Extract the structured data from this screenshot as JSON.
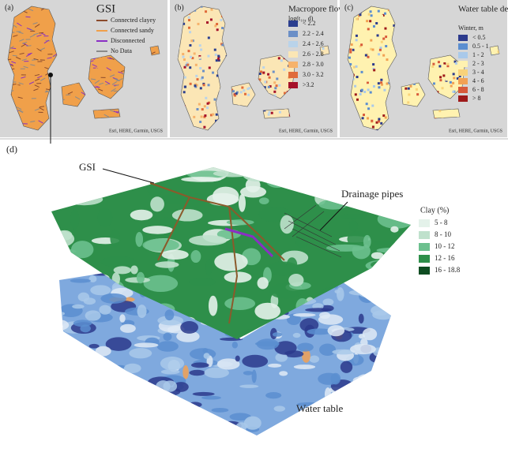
{
  "panels": [
    {
      "label": "(a)",
      "legend": {
        "title": "GSI",
        "items": [
          {
            "label": "Connected clayey",
            "color": "#8b4a2b"
          },
          {
            "label": "Connected sandy",
            "color": "#f0a04a"
          },
          {
            "label": "Disconnected",
            "color": "#8a2fc4"
          },
          {
            "label": "No Data",
            "color": "#8a8a8a"
          }
        ]
      },
      "credit": "Esri, HERE, Garmin, USGS"
    },
    {
      "label": "(b)",
      "legend": {
        "title": "Macropore flow",
        "subtitle": "log(t₁₀, d)",
        "items": [
          {
            "label": "< 2.2",
            "color": "#2b3f8f"
          },
          {
            "label": "2.2 - 2.4",
            "color": "#6b8fc7"
          },
          {
            "label": "2.4 - 2.6",
            "color": "#b9d3ea"
          },
          {
            "label": "2.6 - 2.8",
            "color": "#fbe6b5"
          },
          {
            "label": "2.8 - 3.0",
            "color": "#f6b26b"
          },
          {
            "label": "3.0 - 3.2",
            "color": "#e06b3b"
          },
          {
            "label": ">3.2",
            "color": "#a5112a"
          }
        ]
      },
      "credit": "Esri, HERE, Garmin, USGS"
    },
    {
      "label": "(c)",
      "legend": {
        "title": "Water table depth",
        "subtitle": "Winter, m",
        "items": [
          {
            "label": "< 0.5",
            "color": "#2c3a8c"
          },
          {
            "label": "0.5 - 1",
            "color": "#5b8ed0"
          },
          {
            "label": "1 - 2",
            "color": "#a9c9ea"
          },
          {
            "label": "2 - 3",
            "color": "#fff2b0"
          },
          {
            "label": "3 - 4",
            "color": "#f8d27a"
          },
          {
            "label": "4 - 6",
            "color": "#f2a153"
          },
          {
            "label": "6 - 8",
            "color": "#d85a3a"
          },
          {
            "label": "> 8",
            "color": "#9e1a1a"
          }
        ]
      },
      "credit": "Esri, HERE, Garmin, USGS"
    }
  ],
  "panel_d": {
    "label": "(d)",
    "annotations": [
      "GSI",
      "Drainage pipes",
      "Water table"
    ],
    "legend": {
      "title": "Clay (%)",
      "items": [
        {
          "label": "5 - 8",
          "color": "#e4f2ea"
        },
        {
          "label": "8 - 10",
          "color": "#bfe1cc"
        },
        {
          "label": "10 - 12",
          "color": "#6cc08e"
        },
        {
          "label": "12 - 16",
          "color": "#2e8f4a"
        },
        {
          "label": "16 - 18.8",
          "color": "#0f4d22"
        }
      ]
    }
  }
}
